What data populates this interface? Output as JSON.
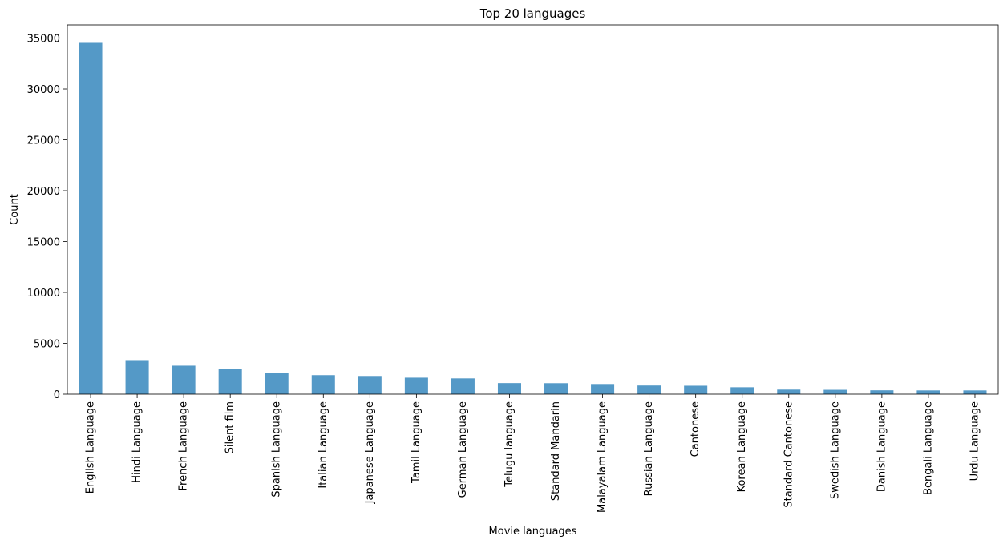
{
  "chart_data": {
    "type": "bar",
    "title": "Top 20 languages",
    "xlabel": "Movie languages",
    "ylabel": "Count",
    "ylim": [
      0,
      36300
    ],
    "yticks": [
      0,
      5000,
      10000,
      15000,
      20000,
      25000,
      30000,
      35000
    ],
    "grid": false,
    "legend": "none",
    "bar_color": "#5499c7",
    "categories": [
      "English Language",
      "Hindi Language",
      "French Language",
      "Silent film",
      "Spanish Language",
      "Italian Language",
      "Japanese Language",
      "Tamil Language",
      "German Language",
      "Telugu language",
      "Standard Mandarin",
      "Malayalam Language",
      "Russian Language",
      "Cantonese",
      "Korean Language",
      "Standard Cantonese",
      "Swedish Language",
      "Danish Language",
      "Bengali Language",
      "Urdu Language"
    ],
    "values": [
      34530,
      3350,
      2800,
      2490,
      2090,
      1870,
      1790,
      1620,
      1550,
      1090,
      1080,
      1000,
      850,
      830,
      680,
      450,
      430,
      380,
      370,
      370
    ]
  }
}
